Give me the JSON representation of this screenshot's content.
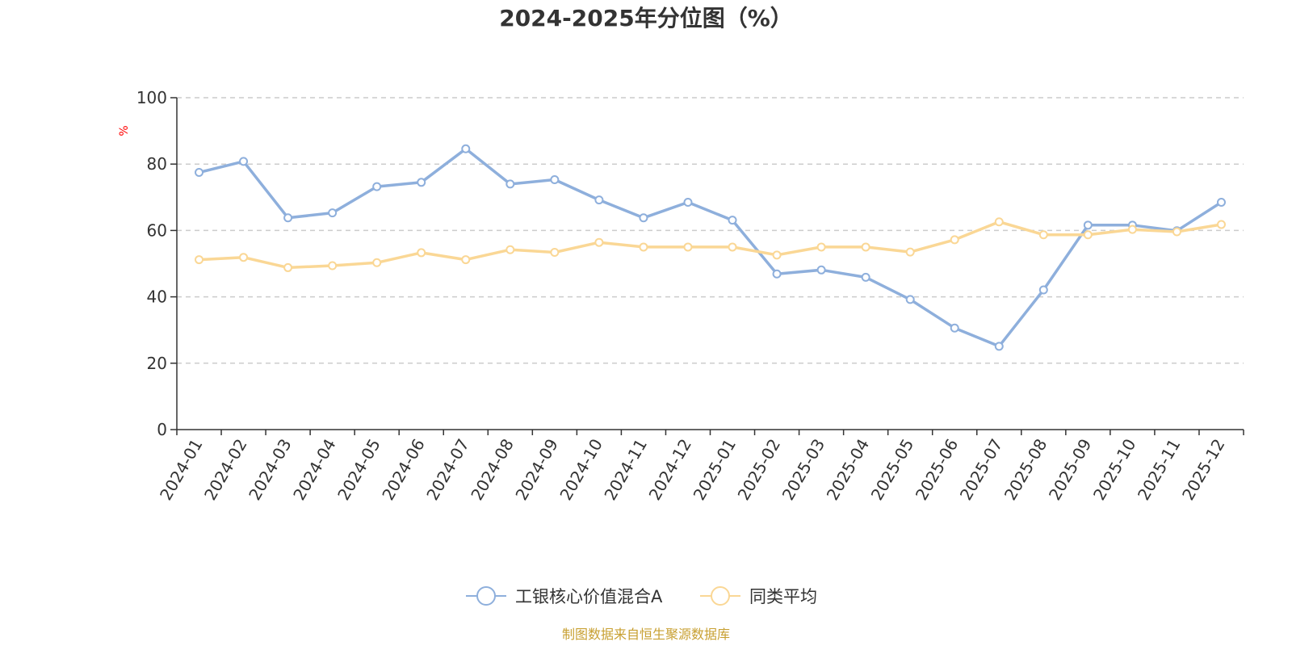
{
  "chart_data": {
    "type": "line",
    "title": "2024-2025年分位图（%）",
    "ylabel": "%",
    "ylim": [
      0,
      100
    ],
    "yticks": [
      0,
      20,
      40,
      60,
      80,
      100
    ],
    "grid": true,
    "legend_position": "bottom",
    "categories": [
      "2024-01",
      "2024-02",
      "2024-03",
      "2024-04",
      "2024-05",
      "2024-06",
      "2024-07",
      "2024-08",
      "2024-09",
      "2024-10",
      "2024-11",
      "2024-12",
      "2025-01",
      "2025-02",
      "2025-03",
      "2025-04",
      "2025-05",
      "2025-06",
      "2025-07",
      "2025-08",
      "2025-09",
      "2025-10",
      "2025-11",
      "2025-12"
    ],
    "series": [
      {
        "name": "工银核心价值混合A",
        "color": "#8eafdc",
        "values": [
          77.5,
          80.8,
          63.8,
          65.3,
          73.2,
          74.5,
          84.6,
          74.0,
          75.3,
          69.2,
          63.8,
          68.5,
          63.1,
          46.9,
          48.1,
          45.9,
          39.2,
          30.6,
          25.1,
          42.1,
          61.6,
          61.6,
          59.9,
          68.5
        ]
      },
      {
        "name": "同类平均",
        "color": "#fad795",
        "values": [
          51.2,
          51.9,
          48.8,
          49.4,
          50.3,
          53.3,
          51.2,
          54.2,
          53.4,
          56.4,
          55.0,
          55.0,
          55.0,
          52.6,
          55.0,
          55.0,
          53.5,
          57.2,
          62.6,
          58.7,
          58.7,
          60.3,
          59.6,
          61.8
        ]
      }
    ],
    "axis_color": "#333333",
    "grid_color": "#cccccc",
    "unit_color": "#ff0000"
  },
  "footer": {
    "source": "制图数据来自恒生聚源数据库",
    "source_color": "#c8a032"
  }
}
